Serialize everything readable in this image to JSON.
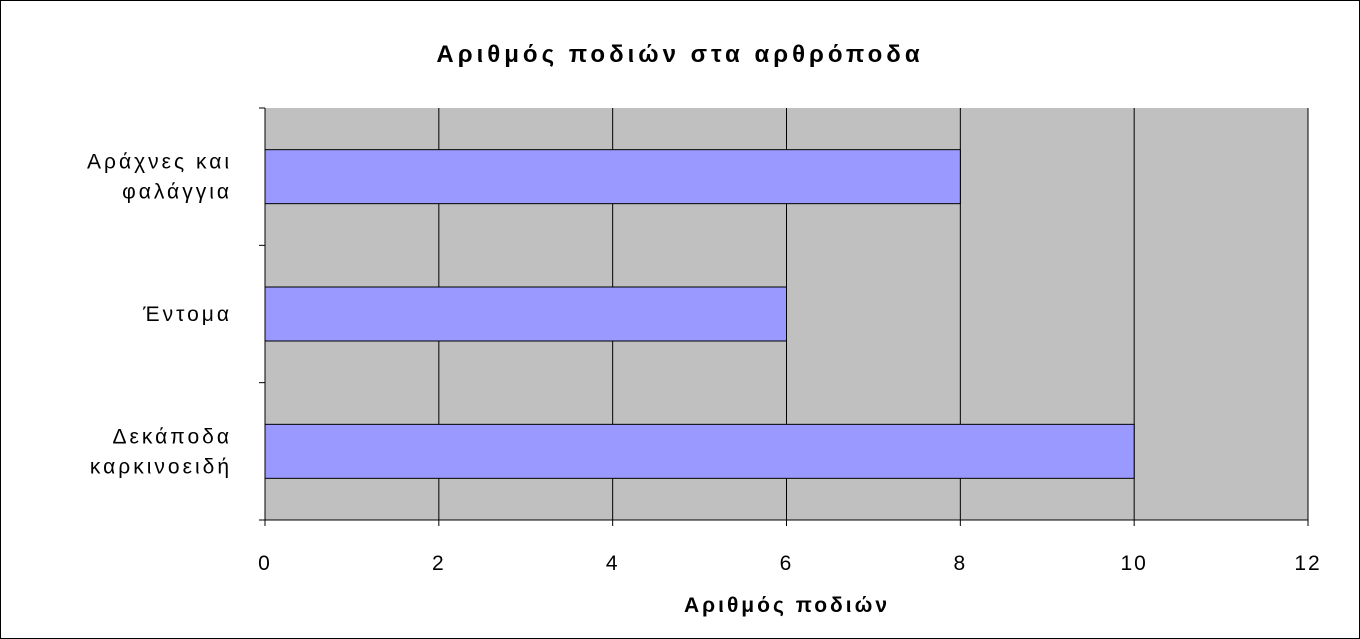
{
  "chart_data": {
    "type": "bar",
    "orientation": "horizontal",
    "title": "Αριθμός ποδιών στα αρθρόποδα",
    "xlabel": "Αριθμός ποδιών",
    "ylabel": "",
    "categories": [
      [
        "Αράχνες και",
        "φαλάγγια"
      ],
      [
        "Έντομα"
      ],
      [
        "Δεκάποδα",
        "καρκινοειδή"
      ]
    ],
    "values": [
      8,
      6,
      10
    ],
    "xlim": [
      0,
      12
    ],
    "xticks": [
      "0",
      "2",
      "4",
      "6",
      "8",
      "10",
      "12"
    ],
    "grid": true,
    "legend": "none",
    "colors": {
      "bar_fill": "#9999FF",
      "bar_stroke": "#000000",
      "plot_background": "#C0C0C0",
      "gridline": "#000000"
    }
  }
}
